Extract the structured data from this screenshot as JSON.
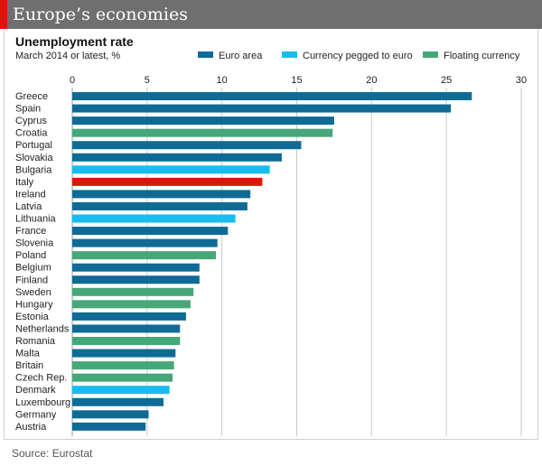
{
  "banner": {
    "title": "Europe’s economies"
  },
  "chart_data": {
    "type": "bar",
    "orientation": "horizontal",
    "title": "Unemployment rate",
    "subtitle": "March 2014 or latest, %",
    "xlim": [
      0,
      30
    ],
    "ticks": [
      0,
      5,
      10,
      15,
      20,
      25,
      30
    ],
    "grid": true,
    "legend_position": "top-right",
    "legend": [
      {
        "key": "euro",
        "label": "Euro area",
        "color": "#0f6a96"
      },
      {
        "key": "pegged",
        "label": "Currency pegged to euro",
        "color": "#18bdf0"
      },
      {
        "key": "floating",
        "label": "Floating currency",
        "color": "#46a779"
      }
    ],
    "highlight_color": "#e3120b",
    "categories": [
      "Greece",
      "Spain",
      "Cyprus",
      "Croatia",
      "Portugal",
      "Slovakia",
      "Bulgaria",
      "Italy",
      "Ireland",
      "Latvia",
      "Lithuania",
      "France",
      "Slovenia",
      "Poland",
      "Belgium",
      "Finland",
      "Sweden",
      "Hungary",
      "Estonia",
      "Netherlands",
      "Romania",
      "Malta",
      "Britain",
      "Czech Rep.",
      "Denmark",
      "Luxembourg",
      "Germany",
      "Austria"
    ],
    "values": [
      26.7,
      25.3,
      17.5,
      17.4,
      15.3,
      14.0,
      13.2,
      12.7,
      11.9,
      11.7,
      10.9,
      10.4,
      9.7,
      9.6,
      8.5,
      8.5,
      8.1,
      7.9,
      7.6,
      7.2,
      7.2,
      6.9,
      6.8,
      6.7,
      6.5,
      6.1,
      5.1,
      4.9
    ],
    "groups": [
      "euro",
      "euro",
      "euro",
      "floating",
      "euro",
      "euro",
      "pegged",
      "highlight",
      "euro",
      "euro",
      "pegged",
      "euro",
      "euro",
      "floating",
      "euro",
      "euro",
      "floating",
      "floating",
      "euro",
      "euro",
      "floating",
      "euro",
      "floating",
      "floating",
      "pegged",
      "euro",
      "euro",
      "euro"
    ]
  },
  "source": "Source: Eurostat"
}
